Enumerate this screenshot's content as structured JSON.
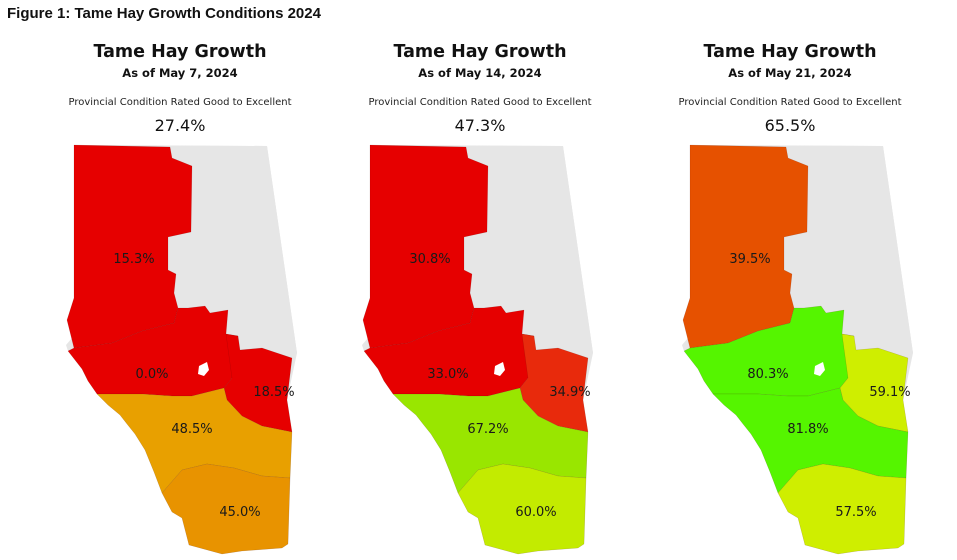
{
  "figure_title": "Figure 1: Tame Hay Growth Conditions 2024",
  "caption": "Provincial Condition Rated Good to Excellent",
  "colors": {
    "no_data": "#e6e6e6",
    "red": "#e60000",
    "red_orange": "#e82a0c",
    "orange_red": "#e65100",
    "orange": "#e8a000",
    "dark_orange": "#e89300",
    "light_green": "#99e600",
    "yellow_green": "#c3eb00",
    "green": "#55f500",
    "lime": "#cfee00"
  },
  "panels": [
    {
      "title": "Tame Hay Growth",
      "date": "As of May 7, 2024",
      "provincial": "27.4%",
      "regions": [
        {
          "id": "peace",
          "label": "15.3%",
          "color": "#e60000"
        },
        {
          "id": "northwest",
          "label": "0.0%",
          "color": "#e60000"
        },
        {
          "id": "northeast",
          "label": "18.5%",
          "color": "#e60000"
        },
        {
          "id": "central",
          "label": "48.5%",
          "color": "#e8a000"
        },
        {
          "id": "south",
          "label": "45.0%",
          "color": "#e89300"
        }
      ]
    },
    {
      "title": "Tame Hay Growth",
      "date": "As of May 14, 2024",
      "provincial": "47.3%",
      "regions": [
        {
          "id": "peace",
          "label": "30.8%",
          "color": "#e60000"
        },
        {
          "id": "northwest",
          "label": "33.0%",
          "color": "#e60000"
        },
        {
          "id": "northeast",
          "label": "34.9%",
          "color": "#e82a0c"
        },
        {
          "id": "central",
          "label": "67.2%",
          "color": "#99e600"
        },
        {
          "id": "south",
          "label": "60.0%",
          "color": "#c3eb00"
        }
      ]
    },
    {
      "title": "Tame Hay Growth",
      "date": "As of May 21, 2024",
      "provincial": "65.5%",
      "regions": [
        {
          "id": "peace",
          "label": "39.5%",
          "color": "#e65100"
        },
        {
          "id": "northwest",
          "label": "80.3%",
          "color": "#55f500"
        },
        {
          "id": "northeast",
          "label": "59.1%",
          "color": "#cfee00"
        },
        {
          "id": "central",
          "label": "81.8%",
          "color": "#55f500"
        },
        {
          "id": "south",
          "label": "57.5%",
          "color": "#cfee00"
        }
      ]
    }
  ]
}
